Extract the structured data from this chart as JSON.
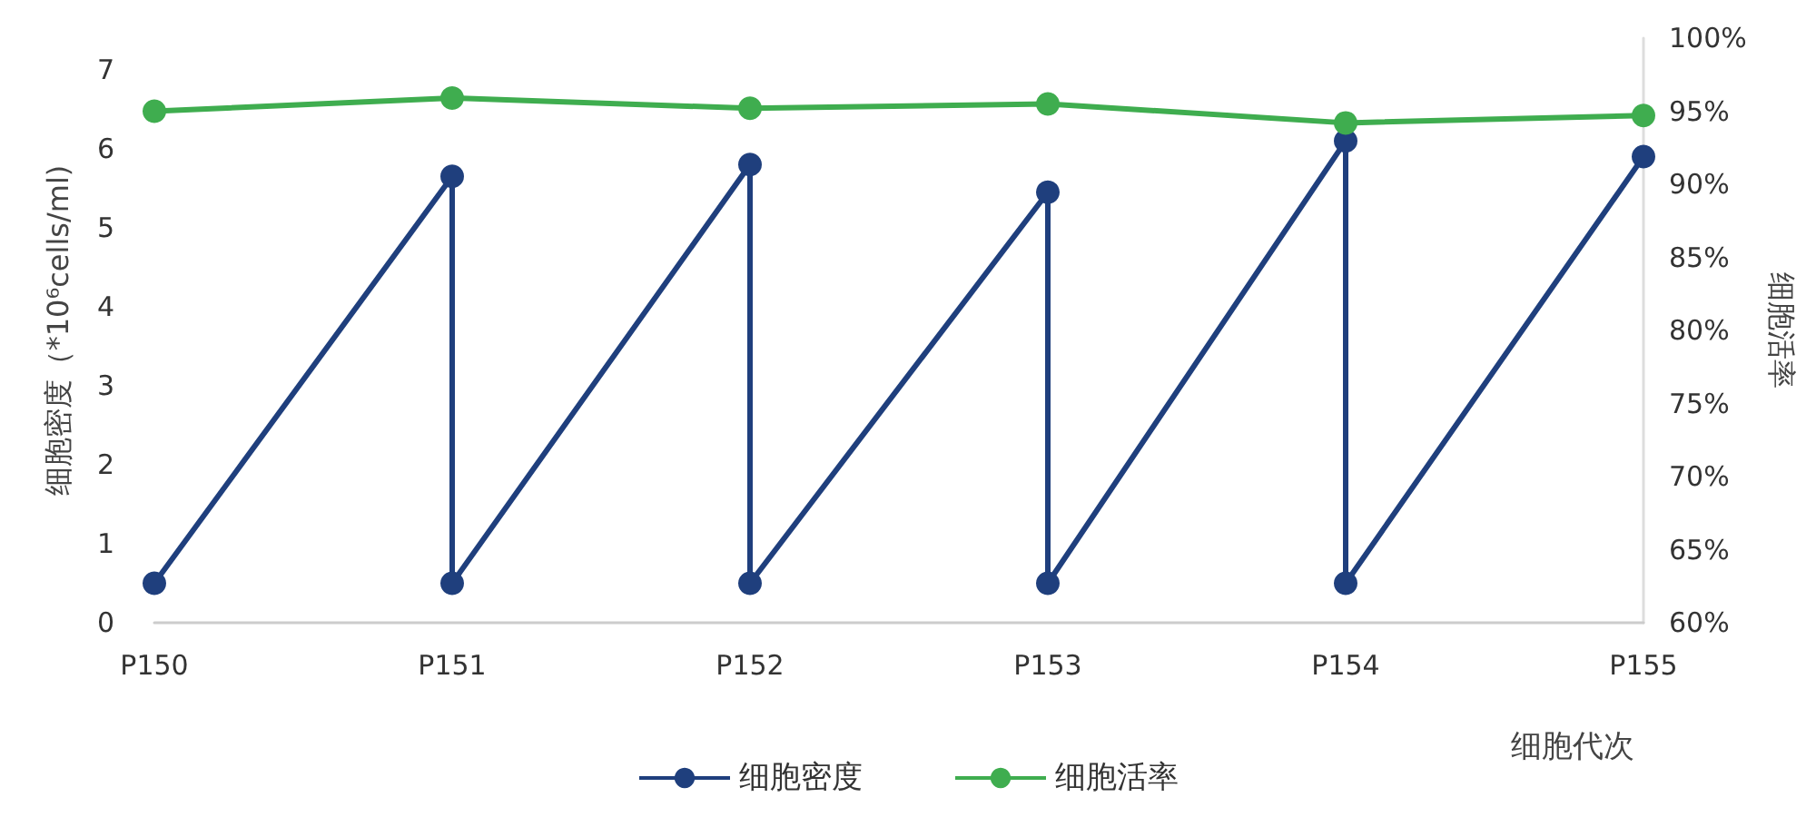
{
  "chart_data": {
    "type": "line",
    "xlabel": "细胞代次",
    "ylabel": "细胞密度（*10⁶cells/ml)",
    "y2label": "细胞活率",
    "categories": [
      "P150",
      "P151",
      "P152",
      "P153",
      "P154",
      "P155"
    ],
    "ylim": [
      0,
      7.4
    ],
    "yticks": [
      0,
      1,
      2,
      3,
      4,
      5,
      6,
      7
    ],
    "y2lim": [
      60,
      100
    ],
    "y2ticks": [
      {
        "value": 60,
        "label": "60%"
      },
      {
        "value": 65,
        "label": "65%"
      },
      {
        "value": 70,
        "label": "70%"
      },
      {
        "value": 75,
        "label": "75%"
      },
      {
        "value": 80,
        "label": "80%"
      },
      {
        "value": 85,
        "label": "85%"
      },
      {
        "value": 90,
        "label": "90%"
      },
      {
        "value": 95,
        "label": "95%"
      },
      {
        "value": 100,
        "label": "100%"
      }
    ],
    "series": [
      {
        "name": "细胞密度",
        "color": "#1f3f7d",
        "x": [
          "P150",
          "P151",
          "P151",
          "P152",
          "P152",
          "P153",
          "P153",
          "P154",
          "P154",
          "P155"
        ],
        "values": [
          0.5,
          5.65,
          0.5,
          5.8,
          0.5,
          5.45,
          0.5,
          6.1,
          0.5,
          5.9
        ]
      },
      {
        "name": "细胞活率",
        "color": "#3fad4f",
        "axis": "y2",
        "values": [
          95.0,
          95.9,
          95.2,
          95.5,
          94.2,
          94.7
        ]
      }
    ],
    "grid": false,
    "legend": "bottom",
    "marker": "circle",
    "line_style": "solid"
  }
}
